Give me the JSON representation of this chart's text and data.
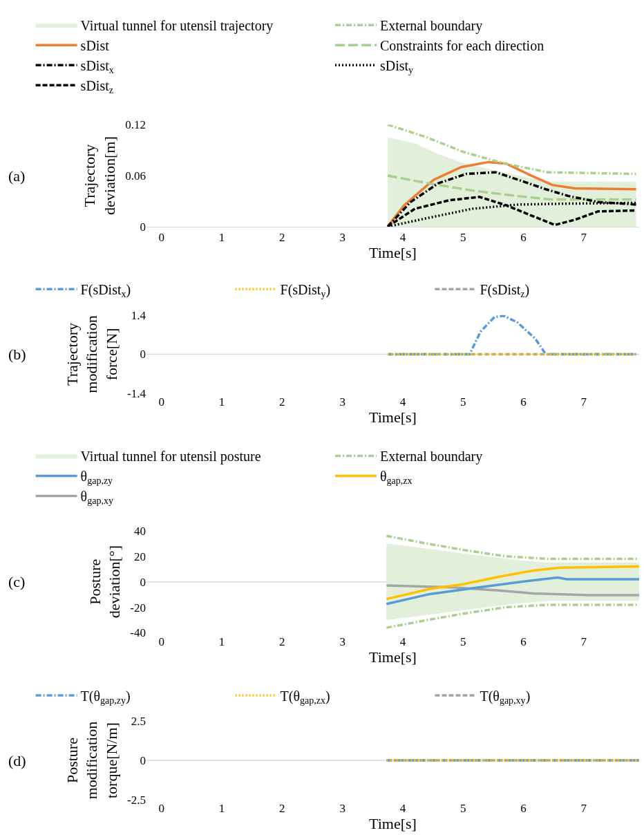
{
  "chart_data": [
    {
      "type": "line",
      "xlabel": "Time[s]",
      "ylabel": "Trajectory deviation[m]",
      "annotations": [
        "(a)"
      ],
      "xlim": [
        -0.25,
        7.92
      ],
      "xticks": [
        0,
        1,
        2,
        3,
        4,
        5,
        6,
        7
      ],
      "ylim": [
        0,
        0.12
      ],
      "yticks": [
        0,
        0.06,
        0.12
      ],
      "grid": false,
      "marker": "none",
      "legend": "top",
      "series": [
        {
          "type": "area",
          "name": "Virtual tunnel for utensil trajectory",
          "color": "#e2efda",
          "x": [
            3.75,
            4.2,
            4.6,
            5.0,
            5.6,
            6.4,
            7.87
          ],
          "values": [
            0.105,
            0.098,
            0.085,
            0.075,
            0.065,
            0.053,
            0.053
          ]
        },
        {
          "name": "External boundary",
          "color": "#a9d18e",
          "line_style": "dashdot",
          "x": [
            3.75,
            4.4,
            5.0,
            5.7,
            6.4,
            7.87
          ],
          "values": [
            0.12,
            0.105,
            0.088,
            0.074,
            0.064,
            0.062
          ]
        },
        {
          "name": "sDist",
          "color": "#ed7d31",
          "line_style": "solid",
          "x": [
            3.75,
            4.02,
            4.51,
            4.97,
            5.42,
            5.72,
            6.1,
            6.48,
            6.85,
            7.87
          ],
          "values": [
            0,
            0.025,
            0.055,
            0.07,
            0.076,
            0.074,
            0.061,
            0.049,
            0.045,
            0.044
          ]
        },
        {
          "name": "Constraints for each direction",
          "color": "#a9d18e",
          "line_style": "longdash",
          "x": [
            3.75,
            4.5,
            5.2,
            5.9,
            6.45,
            7.87
          ],
          "values": [
            0.06,
            0.05,
            0.042,
            0.036,
            0.032,
            0.032
          ]
        },
        {
          "name": "sDist$_{x}$",
          "color": "#000000",
          "line_style": "dashdot",
          "x": [
            3.75,
            4.13,
            4.59,
            5.05,
            5.54,
            5.92,
            6.37,
            6.75,
            7.24,
            7.87
          ],
          "values": [
            0,
            0.029,
            0.051,
            0.062,
            0.064,
            0.055,
            0.044,
            0.036,
            0.029,
            0.026
          ]
        },
        {
          "name": "sDist$_{y}$",
          "color": "#000000",
          "line_style": "dotted",
          "x": [
            3.75,
            4.4,
            5.15,
            5.92,
            6.67,
            7.87
          ],
          "values": [
            0,
            0.01,
            0.021,
            0.026,
            0.027,
            0.028
          ]
        },
        {
          "name": "sDist$_{z}$",
          "color": "#000000",
          "line_style": "dashed",
          "x": [
            3.75,
            4.2,
            4.77,
            5.27,
            5.72,
            6.1,
            6.52,
            6.85,
            7.24,
            7.87
          ],
          "values": [
            0,
            0.021,
            0.031,
            0.035,
            0.025,
            0.014,
            0.002,
            0.008,
            0.018,
            0.019
          ]
        }
      ]
    },
    {
      "type": "line",
      "xlabel": "Time[s]",
      "ylabel": "Trajectory modification force[N]",
      "annotations": [
        "(b)"
      ],
      "xlim": [
        -0.25,
        7.92
      ],
      "xticks": [
        0,
        1,
        2,
        3,
        4,
        5,
        6,
        7
      ],
      "ylim": [
        -1.4,
        1.4
      ],
      "yticks": [
        -1.4,
        0,
        1.4
      ],
      "grid": false,
      "marker": "none",
      "legend": "top",
      "ref_lines": [
        {
          "axis": "y",
          "value": 0,
          "color": "#d9d9d9"
        }
      ],
      "series": [
        {
          "name": "F(sDist$_{x}$)",
          "color": "#5b9bd5",
          "line_style": "dashdot",
          "x": [
            3.75,
            5.11,
            5.29,
            5.52,
            5.67,
            5.9,
            6.2,
            6.37,
            7.87
          ],
          "values": [
            0,
            0,
            0.81,
            1.33,
            1.38,
            1.14,
            0.55,
            0,
            0
          ]
        },
        {
          "name": "F(sDist$_{y}$)",
          "color": "#ffc000",
          "line_style": "dotted",
          "x": [
            3.75,
            7.87
          ],
          "values": [
            0,
            0
          ]
        },
        {
          "name": "F(sDist$_{z}$)",
          "color": "#a5a5a5",
          "line_style": "dashed",
          "x": [
            3.75,
            7.87
          ],
          "values": [
            0,
            0
          ]
        }
      ]
    },
    {
      "type": "line",
      "xlabel": "Time[s]",
      "ylabel": "Posture deviation[°]",
      "annotations": [
        "(c)"
      ],
      "xlim": [
        -0.25,
        7.92
      ],
      "xticks": [
        0,
        1,
        2,
        3,
        4,
        5,
        6,
        7
      ],
      "ylim": [
        -40,
        40
      ],
      "yticks": [
        -40,
        -20,
        0,
        20,
        40
      ],
      "grid": false,
      "marker": "none",
      "legend": "top",
      "ref_lines": [
        {
          "axis": "y",
          "value": 0,
          "color": "#d9d9d9"
        }
      ],
      "series": [
        {
          "type": "area",
          "name": "Virtual tunnel for utensil posture",
          "color": "#e2efda",
          "x": [
            3.73,
            4.5,
            5.2,
            5.9,
            6.4,
            7.92
          ],
          "values": [
            30,
            25.5,
            21,
            17,
            15,
            15
          ]
        },
        {
          "type": "area",
          "color": "#e2efda",
          "x": [
            3.73,
            4.5,
            5.2,
            5.9,
            6.4,
            7.92
          ],
          "values": [
            -30,
            -25.5,
            -21,
            -17,
            -15,
            -15
          ]
        },
        {
          "name": "External boundary",
          "color": "#a9d18e",
          "line_style": "dashdot",
          "x": [
            3.73,
            4.4,
            5.0,
            5.7,
            6.4,
            7.92
          ],
          "values": [
            36,
            30,
            25,
            20,
            18,
            18
          ]
        },
        {
          "color": "#a9d18e",
          "line_style": "dashdot",
          "x": [
            3.73,
            4.4,
            5.0,
            5.7,
            6.4,
            7.92
          ],
          "values": [
            -36,
            -30,
            -25,
            -20,
            -18,
            -18
          ]
        },
        {
          "name": "θ$_{gap,zy}$",
          "color": "#5b9bd5",
          "line_style": "solid",
          "x": [
            3.73,
            4.45,
            5.2,
            5.96,
            6.57,
            6.72,
            7.92
          ],
          "values": [
            -17.4,
            -9.6,
            -4.8,
            0,
            3.3,
            2,
            2
          ]
        },
        {
          "name": "θ$_{gap,zx}$",
          "color": "#ffc000",
          "line_style": "solid",
          "x": [
            3.73,
            4.45,
            5.0,
            5.59,
            6.16,
            6.61,
            7.92
          ],
          "values": [
            -13.5,
            -5.6,
            -1.9,
            3.9,
            8.8,
            11.1,
            12
          ]
        },
        {
          "name": "θ$_{gap,xy}$",
          "color": "#a5a5a5",
          "line_style": "solid",
          "x": [
            3.73,
            4.82,
            5.59,
            6.16,
            7.1,
            7.92
          ],
          "values": [
            -2.9,
            -4.4,
            -6.8,
            -9.1,
            -10.5,
            -10.5
          ]
        }
      ]
    },
    {
      "type": "line",
      "xlabel": "Time[s]",
      "ylabel": "Posture modification torque[N/m]",
      "annotations": [
        "(d)"
      ],
      "xlim": [
        -0.25,
        7.92
      ],
      "xticks": [
        0,
        1,
        2,
        3,
        4,
        5,
        6,
        7
      ],
      "ylim": [
        -2.5,
        2.5
      ],
      "yticks": [
        -2.5,
        0,
        2.5
      ],
      "grid": false,
      "marker": "none",
      "legend": "top",
      "ref_lines": [
        {
          "axis": "y",
          "value": 0,
          "color": "#d9d9d9"
        }
      ],
      "series": [
        {
          "name": "T(θ$_{gap,zy}$)",
          "color": "#5b9bd5",
          "line_style": "dashdot",
          "x": [
            3.73,
            7.92
          ],
          "values": [
            0,
            0
          ]
        },
        {
          "name": "T(θ$_{gap,zx}$)",
          "color": "#ffc000",
          "line_style": "dotted",
          "x": [
            3.73,
            7.92
          ],
          "values": [
            0,
            0
          ]
        },
        {
          "name": "T(θ$_{gap,xy}$)",
          "color": "#a5a5a5",
          "line_style": "dashed",
          "x": [
            3.73,
            7.92
          ],
          "values": [
            0,
            0
          ]
        }
      ]
    }
  ]
}
